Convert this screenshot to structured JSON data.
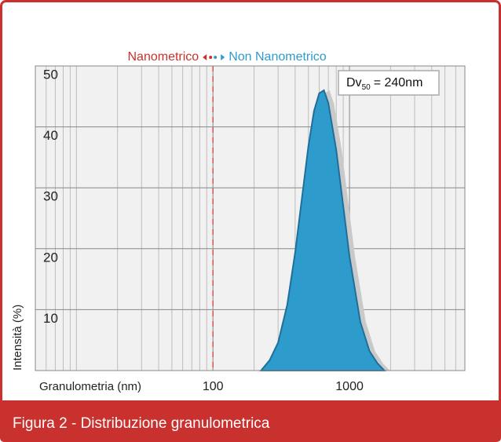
{
  "chart_data": {
    "type": "area",
    "caption": "Figura 2 - Distribuzione granulometrica",
    "xlabel": "Granulometria (nm)",
    "ylabel": "Intensità (%)",
    "left_label": {
      "text": "Nanometrico",
      "color": "#c8312d"
    },
    "right_label": {
      "text": "Non Nanometrico",
      "color": "#2e9bcd"
    },
    "annotation": {
      "main": "Dv",
      "sub": "50",
      "rest": "= 240nm"
    },
    "boundary": 100,
    "x": [
      225,
      260,
      300,
      350,
      400,
      450,
      500,
      550,
      600,
      650,
      700,
      800,
      900,
      1000,
      1200,
      1400,
      1600,
      1800
    ],
    "values": [
      0,
      1.7,
      4.6,
      10.8,
      19.4,
      28.6,
      36.8,
      42.6,
      45.5,
      46,
      43.9,
      36.2,
      27,
      18.7,
      8,
      3.2,
      1.2,
      0
    ],
    "color": "#2e9bcd",
    "xlim": [
      5,
      7000
    ],
    "ylim": [
      0,
      50
    ],
    "log_x": true,
    "xticks": [
      100,
      1000
    ],
    "xminor": [
      6,
      7,
      8,
      9,
      10,
      20,
      30,
      40,
      50,
      60,
      70,
      80,
      90,
      200,
      300,
      400,
      500,
      600,
      700,
      800,
      900,
      2000,
      3000,
      4000,
      5000,
      6000
    ],
    "yticks": [
      10,
      20,
      30,
      40,
      50
    ],
    "grid": true
  }
}
